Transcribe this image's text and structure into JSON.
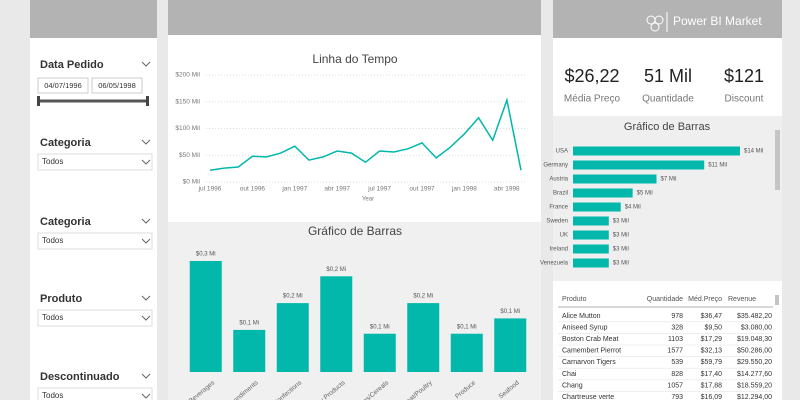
{
  "header": {
    "title": "Power BI Market"
  },
  "slicers": [
    {
      "title": "Data Pedido",
      "start": "04/07/1996",
      "end": "06/05/1998"
    },
    {
      "title": "Categoria",
      "value": "Todos"
    },
    {
      "title": "Categoria",
      "value": "Todos"
    },
    {
      "title": "Produto",
      "value": "Todos"
    },
    {
      "title": "Descontinuado",
      "value": "Todos"
    }
  ],
  "cards": [
    {
      "value": "$26,22",
      "label": "Média Preço"
    },
    {
      "value": "51 Mil",
      "label": "Quantidade"
    },
    {
      "value": "$121",
      "label": "Discount"
    }
  ],
  "table": {
    "columns": [
      "Produto",
      "Quantidade",
      "Méd.Preço",
      "Revenue"
    ],
    "rows": [
      [
        "Alice Mutton",
        "978",
        "$36,47",
        "$35.482,20"
      ],
      [
        "Aniseed Syrup",
        "328",
        "$9,50",
        "$3.080,00"
      ],
      [
        "Boston Crab Meat",
        "1103",
        "$17,29",
        "$19.048,30"
      ],
      [
        "Camembert Pierrot",
        "1577",
        "$32,13",
        "$50.286,00"
      ],
      [
        "Carnarvon Tigers",
        "539",
        "$59,79",
        "$29.550,20"
      ],
      [
        "Chai",
        "828",
        "$17,40",
        "$14.277,60"
      ],
      [
        "Chang",
        "1057",
        "$17,88",
        "$18.559,20"
      ],
      [
        "Chartreuse verte",
        "793",
        "$16,09",
        "$12.294,00"
      ]
    ]
  },
  "chart_data": [
    {
      "type": "line",
      "title": "Linha do Tempo",
      "x_label": "Year",
      "categories": [
        "jul 1996",
        null,
        null,
        "out 1996",
        null,
        null,
        "jan 1997",
        null,
        null,
        "abr 1997",
        null,
        null,
        "jul 1997",
        null,
        null,
        "out 1997",
        null,
        null,
        "jan 1998",
        null,
        null,
        "abr 1998",
        null
      ],
      "values": [
        22,
        26,
        28,
        48,
        47,
        54,
        67,
        41,
        47,
        58,
        54,
        37,
        58,
        56,
        62,
        73,
        45,
        65,
        90,
        120,
        78,
        153,
        22
      ],
      "color": "#01b8aa",
      "ylim": [
        0,
        200
      ],
      "yticks": [
        {
          "value": 0,
          "label": "$0 Mil"
        },
        {
          "value": 50,
          "label": "$50 Mil"
        },
        {
          "value": 100,
          "label": "$100 Mil"
        },
        {
          "value": 150,
          "label": "$150 Mil"
        },
        {
          "value": 200,
          "label": "$200 Mil"
        }
      ],
      "grid": true
    },
    {
      "type": "bar",
      "title": "Gráfico de Barras",
      "categories": [
        "Beverages",
        "Condiments",
        "Confections",
        "Dairy Products",
        "Grains/Cereals",
        "Meat/Poultry",
        "Produce",
        "Seafood"
      ],
      "values": [
        0.29,
        0.11,
        0.18,
        0.25,
        0.1,
        0.18,
        0.1,
        0.14
      ],
      "value_labels": [
        "$0,3 Mi",
        "$0,1 Mi",
        "$0,2 Mi",
        "$0,2 Mi",
        "$0,1 Mi",
        "$0,2 Mi",
        "$0,1 Mi",
        "$0,1 Mi"
      ],
      "color": "#01b8aa"
    },
    {
      "type": "hbar",
      "title": "Gráfico de Barras",
      "categories": [
        "USA",
        "Germany",
        "Austria",
        "Brazil",
        "France",
        "Sweden",
        "UK",
        "Ireland",
        "Venezuela"
      ],
      "values": [
        14,
        11,
        7,
        5,
        4,
        3,
        3,
        3,
        3
      ],
      "value_labels": [
        "$14 Mil",
        "$11 Mil",
        "$7 Mil",
        "$5 Mil",
        "$4 Mil",
        "$3 Mil",
        "$3 Mil",
        "$3 Mil",
        "$3 Mil"
      ],
      "color": "#01b8aa"
    }
  ]
}
